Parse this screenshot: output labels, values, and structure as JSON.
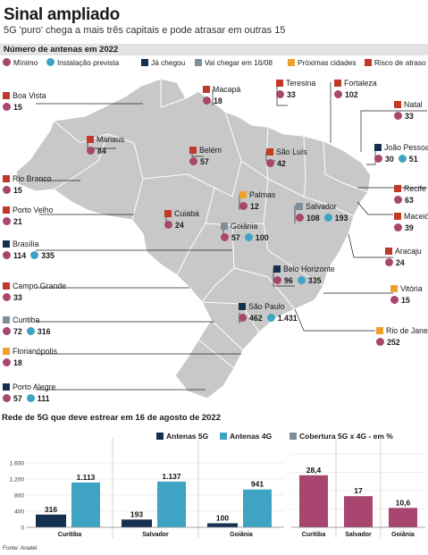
{
  "title": "Sinal ampliado",
  "subtitle": "5G 'puro' chega a mais três capitais e pode atrasar em outras 15",
  "map_section_title": "Número de antenas em 2022",
  "colors": {
    "minimo": "#a8466f",
    "instalacao": "#3fa3c4",
    "ja_chegou": "#14304f",
    "vai_chegar": "#7d8e99",
    "proximas": "#eda230",
    "risco": "#c0392b",
    "map_fill": "#c8c8c8",
    "map_stroke": "#ffffff",
    "bar_5g": "#14304f",
    "bar_4g": "#3fa3c4",
    "bar_cov": "#a8466f"
  },
  "legend": {
    "minimo": "Mínimo",
    "instalacao": "Instalação prevista",
    "ja_chegou": "Já chegou",
    "vai_chegar": "Vai chegar em 16/08",
    "proximas": "Próximas cidades",
    "risco": "Risco de atraso"
  },
  "cities": [
    {
      "name": "Boa Vista",
      "status": "risco",
      "minimo": "15",
      "instalacao": ""
    },
    {
      "name": "Macapá",
      "status": "risco",
      "minimo": "18",
      "instalacao": ""
    },
    {
      "name": "Teresina",
      "status": "risco",
      "minimo": "33",
      "instalacao": ""
    },
    {
      "name": "Fortaleza",
      "status": "risco",
      "minimo": "102",
      "instalacao": ""
    },
    {
      "name": "Natal",
      "status": "risco",
      "minimo": "33",
      "instalacao": ""
    },
    {
      "name": "Manaus",
      "status": "risco",
      "minimo": "84",
      "instalacao": ""
    },
    {
      "name": "Belém",
      "status": "risco",
      "minimo": "57",
      "instalacao": ""
    },
    {
      "name": "São Luís",
      "status": "risco",
      "minimo": "42",
      "instalacao": ""
    },
    {
      "name": "João Pessoa",
      "status": "ja_chegou",
      "minimo": "30",
      "instalacao": "51"
    },
    {
      "name": "Rio Branco",
      "status": "risco",
      "minimo": "15",
      "instalacao": ""
    },
    {
      "name": "Palmas",
      "status": "proximas",
      "minimo": "12",
      "instalacao": ""
    },
    {
      "name": "Recife",
      "status": "risco",
      "minimo": "63",
      "instalacao": ""
    },
    {
      "name": "Porto Velho",
      "status": "risco",
      "minimo": "21",
      "instalacao": ""
    },
    {
      "name": "Cuiabá",
      "status": "risco",
      "minimo": "24",
      "instalacao": ""
    },
    {
      "name": "Salvador",
      "status": "vai_chegar",
      "minimo": "108",
      "instalacao": "193"
    },
    {
      "name": "Maceió",
      "status": "risco",
      "minimo": "39",
      "instalacao": ""
    },
    {
      "name": "Goiânia",
      "status": "vai_chegar",
      "minimo": "57",
      "instalacao": "100"
    },
    {
      "name": "Brasília",
      "status": "ja_chegou",
      "minimo": "114",
      "instalacao": "335"
    },
    {
      "name": "Aracaju",
      "status": "risco",
      "minimo": "24",
      "instalacao": ""
    },
    {
      "name": "Belo Horizonte",
      "status": "ja_chegou",
      "minimo": "96",
      "instalacao": "335"
    },
    {
      "name": "Campo Grande",
      "status": "risco",
      "minimo": "33",
      "instalacao": ""
    },
    {
      "name": "Vitória",
      "status": "proximas",
      "minimo": "15",
      "instalacao": ""
    },
    {
      "name": "São Paulo",
      "status": "ja_chegou",
      "minimo": "462",
      "instalacao": "1.431"
    },
    {
      "name": "Curitiba",
      "status": "vai_chegar",
      "minimo": "72",
      "instalacao": "316"
    },
    {
      "name": "Rio de Janeiro",
      "status": "proximas",
      "minimo": "252",
      "instalacao": ""
    },
    {
      "name": "Florianópolis",
      "status": "proximas",
      "minimo": "18",
      "instalacao": ""
    },
    {
      "name": "Porto Alegre",
      "status": "ja_chegou",
      "minimo": "57",
      "instalacao": "111"
    }
  ],
  "bars_section_title": "Rede de 5G que deve estrear em 16 de agosto de 2022",
  "source": "Fonte: Anatel",
  "chart_data": [
    {
      "type": "bar",
      "title": "",
      "categories": [
        "Curitiba",
        "Salvador",
        "Goiânia"
      ],
      "series": [
        {
          "name": "Antenas 5G",
          "values": [
            316,
            193,
            100
          ],
          "labels": [
            "316",
            "193",
            "100"
          ]
        },
        {
          "name": "Antenas 4G",
          "values": [
            1113,
            1137,
            941
          ],
          "labels": [
            "1.113",
            "1.137",
            "941"
          ]
        }
      ],
      "ylim": [
        0,
        1600
      ],
      "yticks": [
        0,
        400,
        800,
        1200,
        1600
      ],
      "yticklabels": [
        "0",
        "400",
        "800",
        "1.200",
        "1.600"
      ],
      "grid": true,
      "legend": "top-right"
    },
    {
      "type": "bar",
      "title": "Cobertura 5G x 4G - em %",
      "categories": [
        "Curitiba",
        "Salvador",
        "Goiânia"
      ],
      "values": [
        28.4,
        17,
        10.6
      ],
      "labels": [
        "28,4",
        "17",
        "10,6"
      ],
      "ylim": [
        0,
        40
      ],
      "grid": true
    }
  ]
}
